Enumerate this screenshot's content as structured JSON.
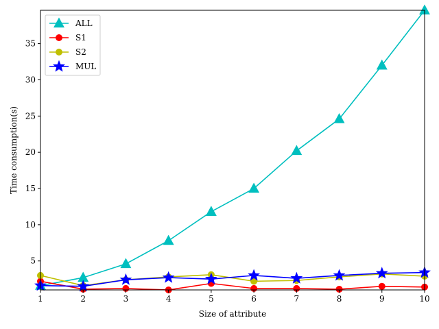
{
  "chart_data": {
    "type": "line",
    "title": "",
    "xlabel": "Size of attribute",
    "ylabel": "Time consumption(s)",
    "x": [
      1,
      2,
      3,
      4,
      5,
      6,
      7,
      8,
      9,
      10
    ],
    "xlim": [
      1,
      10
    ],
    "ylim": [
      1,
      39.6
    ],
    "xticks": [
      1,
      2,
      3,
      4,
      5,
      6,
      7,
      8,
      9,
      10
    ],
    "yticks": [
      5,
      10,
      15,
      20,
      25,
      30,
      35
    ],
    "grid": false,
    "legend_position": "top-left",
    "series": [
      {
        "name": "ALL",
        "color": "#00bfbf",
        "marker": "triangle",
        "values": [
          1.6,
          2.7,
          4.6,
          7.8,
          11.8,
          15.0,
          20.2,
          24.6,
          32.0,
          39.6
        ]
      },
      {
        "name": "S1",
        "color": "#ff0000",
        "marker": "circle",
        "values": [
          2.2,
          1.1,
          1.2,
          1.0,
          1.9,
          1.2,
          1.2,
          1.1,
          1.5,
          1.4
        ]
      },
      {
        "name": "S2",
        "color": "#bfbf00",
        "marker": "circle",
        "values": [
          3.0,
          1.6,
          2.4,
          2.8,
          3.1,
          2.2,
          2.3,
          2.8,
          3.2,
          2.9
        ]
      },
      {
        "name": "MUL",
        "color": "#0000ff",
        "marker": "star",
        "values": [
          1.6,
          1.5,
          2.4,
          2.7,
          2.5,
          3.0,
          2.6,
          3.0,
          3.3,
          3.4
        ]
      }
    ]
  }
}
